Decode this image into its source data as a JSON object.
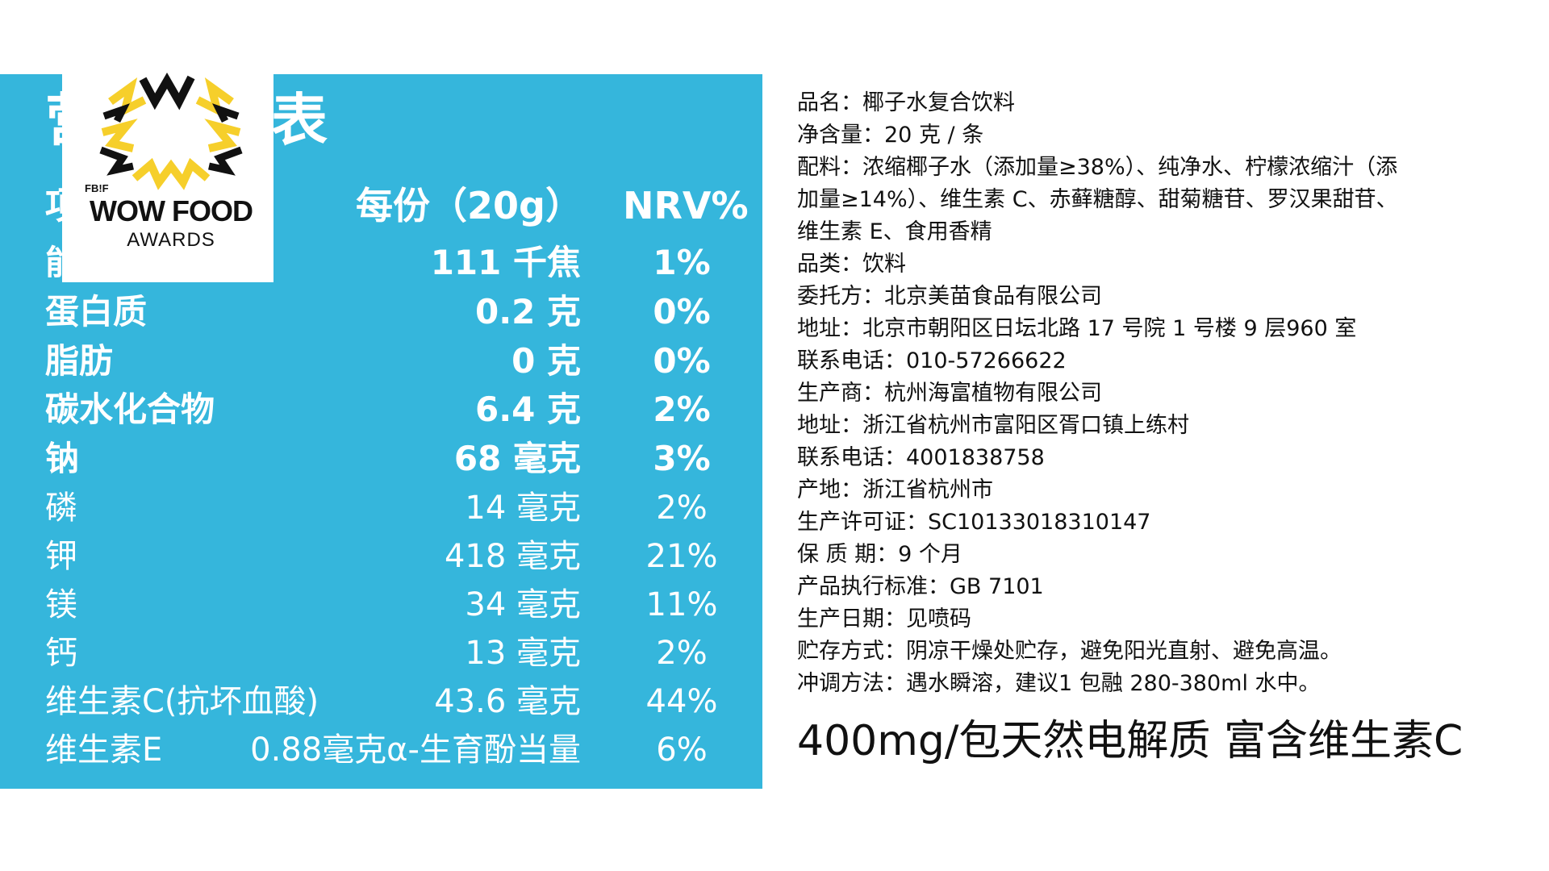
{
  "nutrition": {
    "title": "营养成分表",
    "headers": {
      "item": "项目",
      "per_serving": "每份（20g）",
      "nrv": "NRV%"
    },
    "rows": [
      {
        "name": "能量",
        "value": "111 千焦",
        "nrv": "1%",
        "bold": true
      },
      {
        "name": "蛋白质",
        "value": "0.2 克",
        "nrv": "0%",
        "bold": true
      },
      {
        "name": "脂肪",
        "value": "0 克",
        "nrv": "0%",
        "bold": true
      },
      {
        "name": "碳水化合物",
        "value": "6.4 克",
        "nrv": "2%",
        "bold": true
      },
      {
        "name": "钠",
        "value": "68 毫克",
        "nrv": "3%",
        "bold": true
      },
      {
        "name": "磷",
        "value": "14 毫克",
        "nrv": "2%",
        "bold": false
      },
      {
        "name": "钾",
        "value": "418 毫克",
        "nrv": "21%",
        "bold": false
      },
      {
        "name": "镁",
        "value": "34 毫克",
        "nrv": "11%",
        "bold": false
      },
      {
        "name": "钙",
        "value": "13 毫克",
        "nrv": "2%",
        "bold": false
      },
      {
        "name": "维生素C(抗坏血酸)",
        "value": "43.6 毫克",
        "nrv": "44%",
        "bold": false
      },
      {
        "name": "维生素E",
        "value": "0.88毫克α-生育酚当量",
        "nrv": "6%",
        "bold": false
      }
    ]
  },
  "award": {
    "brand": "FB!F",
    "line1": "WOW FOOD",
    "line2": "AWARDS",
    "colors": {
      "yellow": "#f6cf2b",
      "black": "#111111"
    }
  },
  "product_info": [
    "品名：椰子水复合饮料",
    "净含量：20 克 / 条",
    "配料：浓缩椰子水（添加量≥38%）、纯净水、柠檬浓缩汁（添",
    "加量≥14%）、维生素 C、赤藓糖醇、甜菊糖苷、罗汉果甜苷、",
    "维生素 E、食用香精",
    "品类：饮料",
    "委托方：北京美苗食品有限公司",
    "地址：北京市朝阳区日坛北路 17 号院 1 号楼 9 层960 室",
    "联系电话：010-57266622",
    "生产商：杭州海富植物有限公司",
    "地址：浙江省杭州市富阳区胥口镇上练村",
    "联系电话：4001838758",
    "产地：浙江省杭州市",
    "生产许可证：SC10133018310147",
    "保 质 期：9 个月",
    "产品执行标准：GB 7101",
    "生产日期：见喷码",
    "贮存方式：阴凉干燥处贮存，避免阳光直射、避免高温。",
    "冲调方法：遇水瞬溶，建议1 包融 280-380ml 水中。"
  ],
  "tagline": "400mg/包天然电解质  富含维生素C",
  "colors": {
    "panel_blue": "#35b6dc",
    "text_white": "#ffffff",
    "text_dark": "#111111"
  }
}
